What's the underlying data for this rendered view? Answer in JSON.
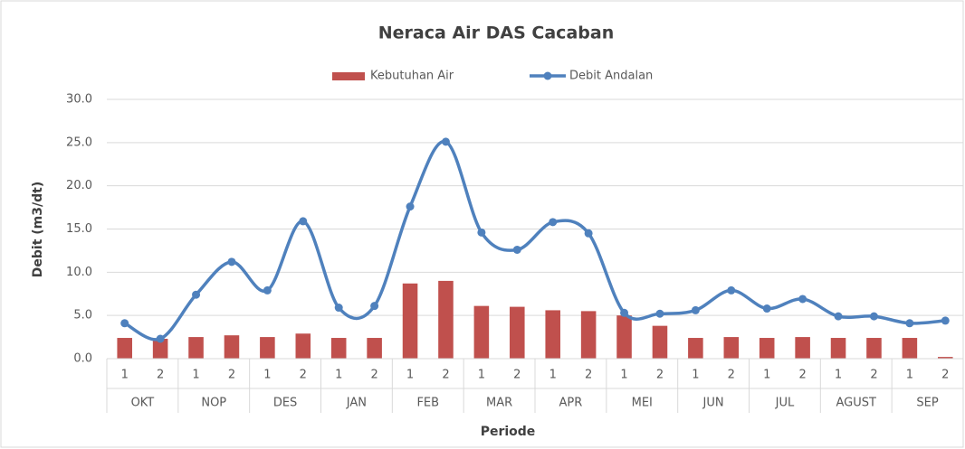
{
  "chart_data": {
    "type": "bar-line",
    "title": "Neraca Air DAS Cacaban",
    "x_label": "Periode",
    "y_label": "Debit (m3/dt)",
    "categories": [
      "1",
      "2",
      "1",
      "2",
      "1",
      "2",
      "1",
      "2",
      "1",
      "2",
      "1",
      "2",
      "1",
      "2",
      "1",
      "2",
      "1",
      "2",
      "1",
      "2",
      "1",
      "2",
      "1",
      "2"
    ],
    "groups": [
      "OKT",
      "NOP",
      "DES",
      "JAN",
      "FEB",
      "MAR",
      "APR",
      "MEI",
      "JUN",
      "JUL",
      "AGUST",
      "SEP"
    ],
    "series": [
      {
        "name": "Kebutuhan Air",
        "kind": "bar",
        "color": "#c0504d",
        "values": [
          2.4,
          2.3,
          2.5,
          2.7,
          2.5,
          2.9,
          2.4,
          2.4,
          8.7,
          9.0,
          6.1,
          6.0,
          5.6,
          5.5,
          5.0,
          3.8,
          2.4,
          2.5,
          2.4,
          2.5,
          2.4,
          2.4,
          2.4,
          0.2
        ]
      },
      {
        "name": "Debit Andalan",
        "kind": "line",
        "color": "#4f81bd",
        "values": [
          4.1,
          2.3,
          7.4,
          11.2,
          7.9,
          15.9,
          5.9,
          6.1,
          17.6,
          25.1,
          14.6,
          12.6,
          15.8,
          14.5,
          5.3,
          5.2,
          5.6,
          7.9,
          5.8,
          6.9,
          4.9,
          4.9,
          4.1,
          4.4
        ]
      }
    ],
    "ylim": [
      0,
      30
    ],
    "yticks": [
      {
        "value": 0,
        "label": "0.0"
      },
      {
        "value": 5,
        "label": "5.0"
      },
      {
        "value": 10,
        "label": "10.0"
      },
      {
        "value": 15,
        "label": "15.0"
      },
      {
        "value": 20,
        "label": "20.0"
      },
      {
        "value": 25,
        "label": "25.0"
      },
      {
        "value": 30,
        "label": "30.0"
      }
    ],
    "grid": true,
    "smooth": true,
    "legend": "top"
  }
}
